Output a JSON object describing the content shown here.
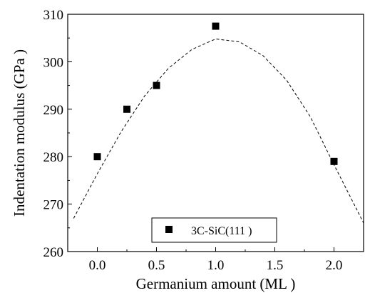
{
  "chart_data": {
    "type": "scatter",
    "title": "",
    "xlabel": "Germanium amount (ML )",
    "ylabel": "Indentation modulus (GPa )",
    "xlim": [
      -0.25,
      2.25
    ],
    "ylim": [
      260,
      310
    ],
    "x_ticks": [
      0.0,
      0.5,
      1.0,
      1.5,
      2.0
    ],
    "x_tick_labels": [
      "0.0",
      "0.5",
      "1.0",
      "1.5",
      "2.0"
    ],
    "y_ticks": [
      260,
      270,
      280,
      290,
      300,
      310
    ],
    "y_tick_labels": [
      "260",
      "270",
      "280",
      "290",
      "300",
      "310"
    ],
    "grid": false,
    "legend_position": "bottom-center",
    "series": [
      {
        "name": "3C-SiC(111 )",
        "marker": "square",
        "color": "#000000",
        "points": [
          {
            "x": 0.0,
            "y": 280.0
          },
          {
            "x": 0.25,
            "y": 290.0
          },
          {
            "x": 0.5,
            "y": 295.0
          },
          {
            "x": 1.0,
            "y": 307.5
          },
          {
            "x": 2.0,
            "y": 279.0
          }
        ]
      }
    ],
    "fit_curve": {
      "style": "dashed",
      "color": "#000000",
      "x": [
        -0.2,
        0.0,
        0.2,
        0.4,
        0.6,
        0.8,
        1.0,
        1.2,
        1.4,
        1.6,
        1.8,
        2.0,
        2.2,
        2.25
      ],
      "y": [
        267.0,
        276.4,
        285.2,
        292.8,
        298.6,
        302.6,
        304.8,
        304.2,
        301.3,
        296.1,
        288.4,
        278.3,
        268.5,
        266.0
      ]
    }
  }
}
